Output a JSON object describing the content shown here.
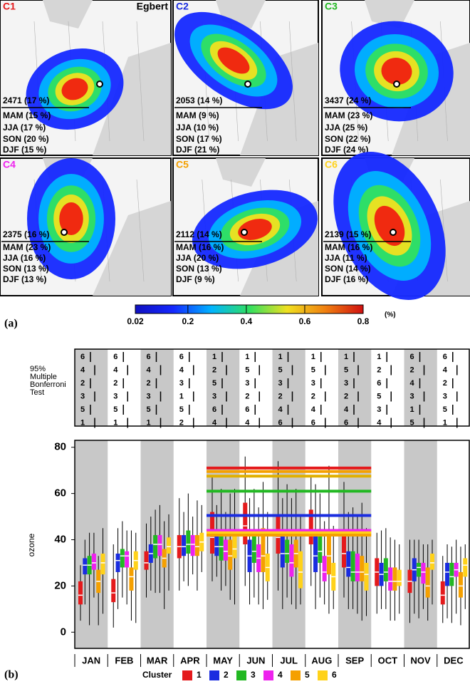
{
  "maps": {
    "panel_label": "(a)",
    "site": "Egbert",
    "panels": [
      {
        "label": "C1",
        "color": "#e41a1c",
        "count": "2471 (17 %)",
        "seasons": [
          "MAM (15 %)",
          "JJA (17 %)",
          "SON (20 %)",
          "DJF (15 %)"
        ]
      },
      {
        "label": "C2",
        "color": "#1a2ce0",
        "count": "2053 (14 %)",
        "seasons": [
          "MAM (9 %)",
          "JJA (10 %)",
          "SON (17 %)",
          "DJF (21 %)"
        ]
      },
      {
        "label": "C3",
        "color": "#22b822",
        "count": "3437 (24 %)",
        "seasons": [
          "MAM (23 %)",
          "JJA (25 %)",
          "SON (22 %)",
          "DJF (24 %)"
        ]
      },
      {
        "label": "C4",
        "color": "#ee22ee",
        "count": "2375 (16 %)",
        "seasons": [
          "MAM (23 %)",
          "JJA (16 %)",
          "SON (13 %)",
          "DJF (13 %)"
        ]
      },
      {
        "label": "C5",
        "color": "#f5a000",
        "count": "2112 (14 %)",
        "seasons": [
          "MAM (16 %)",
          "JJA (20 %)",
          "SON (13 %)",
          "DJF (9 %)"
        ]
      },
      {
        "label": "C6",
        "color": "#ffd21a",
        "count": "2139 (15 %)",
        "seasons": [
          "MAM (16 %)",
          "JJA (11 %)",
          "SON (14 %)",
          "DJF (16 %)"
        ]
      }
    ],
    "colorbar": {
      "lim": [
        0.02,
        0.8
      ],
      "ticks": [
        0.02,
        0.2,
        0.4,
        0.6,
        0.8
      ],
      "unit": "(%)"
    }
  },
  "significance_table": {
    "label_lines": [
      "95%",
      "Multiple",
      "Bonferroni",
      "Test"
    ],
    "columns": [
      [
        6,
        4,
        2,
        3,
        5,
        1
      ],
      [
        6,
        4,
        2,
        3,
        5,
        1
      ],
      [
        6,
        4,
        2,
        3,
        5,
        1
      ],
      [
        6,
        4,
        3,
        1,
        5,
        2
      ],
      [
        1,
        2,
        5,
        3,
        6,
        4
      ],
      [
        1,
        5,
        3,
        2,
        6,
        4
      ],
      [
        1,
        5,
        3,
        2,
        4,
        6
      ],
      [
        1,
        5,
        3,
        2,
        4,
        6
      ],
      [
        1,
        5,
        3,
        2,
        4,
        6
      ],
      [
        1,
        2,
        6,
        5,
        3,
        4
      ],
      [
        6,
        2,
        4,
        3,
        1,
        5
      ],
      [
        6,
        4,
        2,
        3,
        5,
        1
      ]
    ]
  },
  "chart_data": {
    "type": "box",
    "panel_label": "(b)",
    "ylabel": "ozone",
    "legend_title": "Cluster",
    "categories": [
      "JAN",
      "FEB",
      "MAR",
      "APR",
      "MAY",
      "JUN",
      "JUL",
      "AUG",
      "SEP",
      "OCT",
      "NOV",
      "DEC"
    ],
    "ylim": [
      -7,
      83
    ],
    "yticks": [
      0,
      20,
      40,
      60,
      80
    ],
    "series": [
      {
        "name": "1",
        "color": "#e41a1c",
        "values": [
          [
            5,
            12,
            16,
            22,
            29
          ],
          [
            2,
            13,
            17,
            23,
            38
          ],
          [
            15,
            27,
            30,
            35,
            47
          ],
          [
            18,
            32,
            37,
            42,
            58
          ],
          [
            22,
            34,
            41,
            52,
            68
          ],
          [
            20,
            38,
            46,
            56,
            76
          ],
          [
            18,
            34,
            41,
            50,
            74
          ],
          [
            20,
            38,
            44,
            53,
            68
          ],
          [
            15,
            28,
            34,
            42,
            65
          ],
          [
            8,
            20,
            26,
            32,
            43
          ],
          [
            4,
            17,
            22,
            27,
            40
          ],
          [
            4,
            12,
            16,
            22,
            33
          ]
        ]
      },
      {
        "name": "2",
        "color": "#1a2ce0",
        "values": [
          [
            12,
            25,
            29,
            32,
            40
          ],
          [
            10,
            26,
            31,
            34,
            45
          ],
          [
            18,
            30,
            34,
            38,
            50
          ],
          [
            22,
            33,
            37,
            42,
            52
          ],
          [
            24,
            33,
            37,
            42,
            55
          ],
          [
            12,
            26,
            33,
            40,
            58
          ],
          [
            10,
            28,
            34,
            42,
            58
          ],
          [
            10,
            26,
            33,
            44,
            64
          ],
          [
            10,
            24,
            28,
            35,
            52
          ],
          [
            10,
            20,
            25,
            30,
            44
          ],
          [
            8,
            22,
            27,
            32,
            40
          ],
          [
            6,
            20,
            26,
            30,
            38
          ]
        ]
      },
      {
        "name": "3",
        "color": "#22b822",
        "values": [
          [
            3,
            25,
            29,
            33,
            43
          ],
          [
            15,
            28,
            33,
            36,
            48
          ],
          [
            17,
            32,
            38,
            42,
            53
          ],
          [
            20,
            34,
            38,
            44,
            60
          ],
          [
            18,
            31,
            37,
            44,
            62
          ],
          [
            15,
            30,
            35,
            42,
            62
          ],
          [
            15,
            30,
            34,
            40,
            64
          ],
          [
            15,
            30,
            35,
            42,
            60
          ],
          [
            10,
            22,
            26,
            35,
            54
          ],
          [
            10,
            22,
            26,
            32,
            45
          ],
          [
            6,
            24,
            28,
            30,
            40
          ],
          [
            4,
            20,
            24,
            30,
            37
          ]
        ]
      },
      {
        "name": "4",
        "color": "#ee22ee",
        "values": [
          [
            15,
            27,
            30,
            34,
            43
          ],
          [
            12,
            28,
            33,
            35,
            44
          ],
          [
            17,
            33,
            38,
            42,
            55
          ],
          [
            25,
            33,
            38,
            42,
            50
          ],
          [
            20,
            31,
            35,
            40,
            52
          ],
          [
            12,
            26,
            32,
            38,
            54
          ],
          [
            12,
            24,
            30,
            38,
            58
          ],
          [
            12,
            22,
            26,
            33,
            48
          ],
          [
            8,
            22,
            26,
            34,
            50
          ],
          [
            5,
            18,
            22,
            28,
            41
          ],
          [
            10,
            21,
            26,
            30,
            38
          ],
          [
            8,
            24,
            27,
            30,
            40
          ]
        ]
      },
      {
        "name": "5",
        "color": "#f5a000",
        "values": [
          [
            3,
            17,
            22,
            27,
            33
          ],
          [
            5,
            18,
            24,
            28,
            44
          ],
          [
            10,
            28,
            32,
            36,
            48
          ],
          [
            18,
            33,
            37,
            42,
            57
          ],
          [
            14,
            27,
            33,
            40,
            60
          ],
          [
            10,
            26,
            33,
            45,
            65
          ],
          [
            10,
            28,
            34,
            40,
            62
          ],
          [
            8,
            25,
            33,
            43,
            72
          ],
          [
            5,
            22,
            26,
            33,
            56
          ],
          [
            5,
            18,
            22,
            28,
            40
          ],
          [
            5,
            15,
            20,
            28,
            38
          ],
          [
            3,
            15,
            20,
            26,
            37
          ]
        ]
      },
      {
        "name": "6",
        "color": "#ffd21a",
        "values": [
          [
            8,
            25,
            30,
            34,
            45
          ],
          [
            4,
            27,
            31,
            35,
            43
          ],
          [
            18,
            34,
            37,
            41,
            51
          ],
          [
            26,
            35,
            39,
            43,
            55
          ],
          [
            12,
            32,
            36,
            44,
            62
          ],
          [
            14,
            22,
            28,
            34,
            52
          ],
          [
            12,
            19,
            26,
            35,
            50
          ],
          [
            10,
            18,
            24,
            30,
            46
          ],
          [
            7,
            18,
            25,
            30,
            45
          ],
          [
            8,
            20,
            22,
            27,
            38
          ],
          [
            12,
            27,
            30,
            34,
            40
          ],
          [
            10,
            24,
            29,
            32,
            38
          ]
        ]
      }
    ],
    "reference_lines": [
      {
        "color": "#e41a1c",
        "value": 71
      },
      {
        "color": "#f5a000",
        "value": 69.5
      },
      {
        "color": "#e0b000",
        "value": 67.5
      },
      {
        "color": "#22b822",
        "value": 61
      },
      {
        "color": "#1a2ce0",
        "value": 50.5
      },
      {
        "color": "#ee22ee",
        "value": 44
      },
      {
        "color": "#ffd21a",
        "value": 43
      },
      {
        "color": "#f5a000",
        "value": 42
      }
    ]
  }
}
